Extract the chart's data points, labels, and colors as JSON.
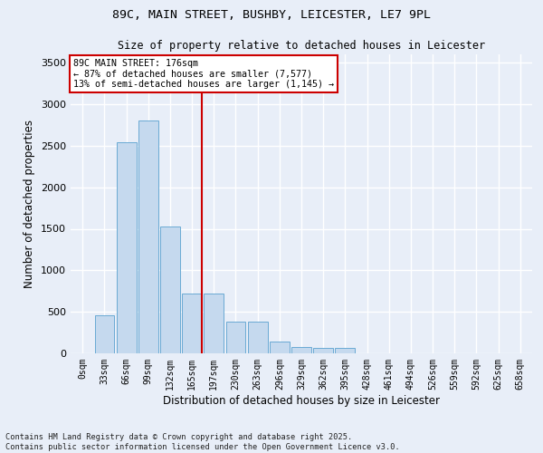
{
  "title_line1": "89C, MAIN STREET, BUSHBY, LEICESTER, LE7 9PL",
  "title_line2": "Size of property relative to detached houses in Leicester",
  "xlabel": "Distribution of detached houses by size in Leicester",
  "ylabel": "Number of detached properties",
  "bar_color": "#c5d9ee",
  "bar_edgecolor": "#6aaad4",
  "bg_color": "#e8eef8",
  "grid_color": "#ffffff",
  "fig_bg_color": "#e8eef8",
  "categories": [
    "0sqm",
    "33sqm",
    "66sqm",
    "99sqm",
    "132sqm",
    "165sqm",
    "197sqm",
    "230sqm",
    "263sqm",
    "296sqm",
    "329sqm",
    "362sqm",
    "395sqm",
    "428sqm",
    "461sqm",
    "494sqm",
    "526sqm",
    "559sqm",
    "592sqm",
    "625sqm",
    "658sqm"
  ],
  "values": [
    5,
    460,
    2540,
    2800,
    1530,
    720,
    720,
    380,
    380,
    140,
    75,
    65,
    65,
    0,
    0,
    0,
    0,
    0,
    0,
    0,
    0
  ],
  "ylim": [
    0,
    3600
  ],
  "yticks": [
    0,
    500,
    1000,
    1500,
    2000,
    2500,
    3000,
    3500
  ],
  "property_label": "89C MAIN STREET: 176sqm",
  "annotation_line1": "← 87% of detached houses are smaller (7,577)",
  "annotation_line2": "13% of semi-detached houses are larger (1,145) →",
  "vline_color": "#cc0000",
  "annotation_box_edgecolor": "#cc0000",
  "annotation_box_facecolor": "#ffffff",
  "footnote1": "Contains HM Land Registry data © Crown copyright and database right 2025.",
  "footnote2": "Contains public sector information licensed under the Open Government Licence v3.0.",
  "vline_x_index": 5.45
}
